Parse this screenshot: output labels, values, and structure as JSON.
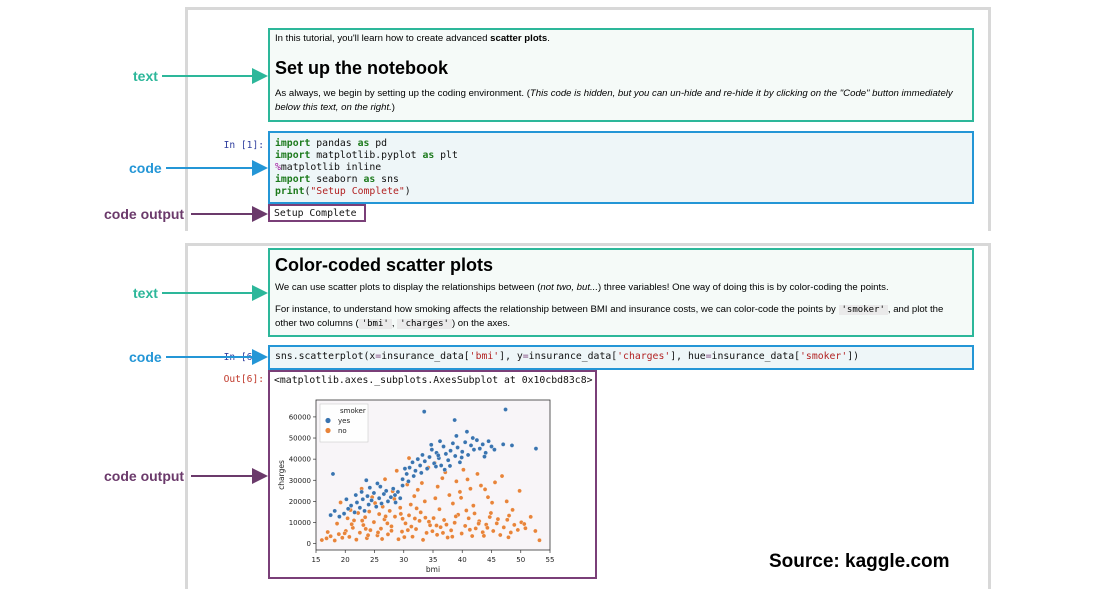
{
  "annotations": {
    "text": "text",
    "code": "code",
    "code_output": "code output"
  },
  "cell1": {
    "intro_prefix": "In this tutorial, you'll learn how to create advanced ",
    "intro_bold": "scatter plots",
    "intro_suffix": ".",
    "heading": "Set up the notebook",
    "para_prefix": "As always, we begin by setting up the coding environment. (",
    "para_italic": "This code is hidden, but you can un-hide and re-hide it by clicking on the \"Code\" button immediately below this text, on the right.",
    "para_suffix": ")"
  },
  "cell2": {
    "prompt": "In [1]:",
    "lines": [
      {
        "kw": "import",
        "rest": " pandas ",
        "kw2": "as",
        "rest2": " pd"
      },
      {
        "kw": "import",
        "rest": " matplotlib.pyplot ",
        "kw2": "as",
        "rest2": " plt"
      },
      {
        "mag": "%",
        "rest": "matplotlib inline"
      },
      {
        "kw": "import",
        "rest": " seaborn ",
        "kw2": "as",
        "rest2": " sns"
      },
      {
        "kw": "print",
        "open": "(",
        "str": "\"Setup Complete\"",
        "close": ")"
      }
    ]
  },
  "cell3": {
    "output": "Setup Complete"
  },
  "cell4": {
    "heading": "Color-coded scatter plots",
    "p1_prefix": "We can use scatter plots to display the relationships between (",
    "p1_italic": "not two, but...",
    "p1_suffix": ") three variables! One way of doing this is by color-coding the points.",
    "p2_a": "For instance, to understand how smoking affects the relationship between BMI and insurance costs, we can color-code the points by ",
    "p2_code1": "'smoker'",
    "p2_b": ", and plot the other two columns (",
    "p2_code2": "'bmi'",
    "p2_c": ", ",
    "p2_code3": "'charges'",
    "p2_d": ") on the axes."
  },
  "cell5": {
    "prompt": "In [6]:",
    "code_a": "sns.scatterplot(x",
    "code_eq1": "=",
    "code_b": "insurance_data[",
    "str1": "'bmi'",
    "code_c": "], y",
    "code_eq2": "=",
    "code_d": "insurance_data[",
    "str2": "'charges'",
    "code_e": "], hue",
    "code_eq3": "=",
    "code_f": "insurance_data[",
    "str3": "'smoker'",
    "code_g": "])"
  },
  "cell6": {
    "prompt": "Out[6]:",
    "repr": "<matplotlib.axes._subplots.AxesSubplot at 0x10cbd83c8>"
  },
  "source": "Source: kaggle.com",
  "colors": {
    "text_border": "#2db79a",
    "code_border": "#2496d6",
    "output_border": "#7a3f78",
    "yes": "#3a74b0",
    "no": "#e8843a"
  },
  "chart_data": {
    "type": "scatter",
    "xlabel": "bmi",
    "ylabel": "charges",
    "xlim": [
      15,
      55
    ],
    "ylim": [
      -3000,
      68000
    ],
    "xticks": [
      15,
      20,
      25,
      30,
      35,
      40,
      45,
      50,
      55
    ],
    "yticks": [
      0,
      10000,
      20000,
      30000,
      40000,
      50000,
      60000
    ],
    "legend_title": "smoker",
    "legend_position": "top-left",
    "series": [
      {
        "name": "yes",
        "color": "#3a74b0",
        "points": [
          [
            17.5,
            13500
          ],
          [
            18.2,
            15500
          ],
          [
            19,
            12800
          ],
          [
            19.8,
            14200
          ],
          [
            20.5,
            16500
          ],
          [
            21,
            18000
          ],
          [
            21.6,
            14800
          ],
          [
            22,
            19500
          ],
          [
            22.5,
            17000
          ],
          [
            23,
            21000
          ],
          [
            23.3,
            15500
          ],
          [
            23.8,
            22500
          ],
          [
            24,
            18500
          ],
          [
            24.5,
            20500
          ],
          [
            24.9,
            24000
          ],
          [
            25.3,
            17500
          ],
          [
            25.8,
            21500
          ],
          [
            26.2,
            19000
          ],
          [
            26.6,
            23500
          ],
          [
            27,
            25000
          ],
          [
            27.3,
            20000
          ],
          [
            27.8,
            22000
          ],
          [
            28.2,
            26000
          ],
          [
            28.6,
            19500
          ],
          [
            29,
            24500
          ],
          [
            29.4,
            21500
          ],
          [
            29.8,
            27500
          ],
          [
            28.5,
            23000
          ],
          [
            26,
            27000
          ],
          [
            24.2,
            26500
          ],
          [
            22.8,
            24500
          ],
          [
            25.5,
            28500
          ],
          [
            23.6,
            30000
          ],
          [
            21.8,
            23000
          ],
          [
            20.2,
            21000
          ],
          [
            30.5,
            33000
          ],
          [
            31,
            36000
          ],
          [
            31.5,
            38500
          ],
          [
            32,
            34500
          ],
          [
            32.4,
            40000
          ],
          [
            32.8,
            37000
          ],
          [
            33.2,
            42000
          ],
          [
            33.6,
            39000
          ],
          [
            34,
            35500
          ],
          [
            34.4,
            41000
          ],
          [
            34.8,
            44500
          ],
          [
            35.2,
            38000
          ],
          [
            35.6,
            43000
          ],
          [
            36,
            40500
          ],
          [
            36.4,
            37000
          ],
          [
            36.8,
            46000
          ],
          [
            37.2,
            42500
          ],
          [
            37.6,
            39500
          ],
          [
            38,
            44000
          ],
          [
            38.4,
            47500
          ],
          [
            38.8,
            41500
          ],
          [
            39.2,
            45500
          ],
          [
            39.6,
            38500
          ],
          [
            40,
            43500
          ],
          [
            40.5,
            48000
          ],
          [
            41,
            42000
          ],
          [
            41.5,
            46500
          ],
          [
            42,
            44500
          ],
          [
            42.5,
            49000
          ],
          [
            43,
            45000
          ],
          [
            43.5,
            47000
          ],
          [
            44,
            43000
          ],
          [
            44.5,
            48500
          ],
          [
            45,
            46000
          ],
          [
            45.5,
            44500
          ],
          [
            47.4,
            63500
          ],
          [
            52.6,
            45000
          ],
          [
            33.5,
            62500
          ],
          [
            38.7,
            58500
          ],
          [
            40.8,
            53000
          ],
          [
            29.8,
            30500
          ],
          [
            30.8,
            29500
          ],
          [
            31.7,
            32000
          ],
          [
            35.5,
            36500
          ],
          [
            37,
            35000
          ],
          [
            33,
            33500
          ],
          [
            36.2,
            48500
          ],
          [
            39,
            51000
          ],
          [
            41.8,
            50000
          ],
          [
            47,
            47000
          ],
          [
            48.5,
            46500
          ],
          [
            30.2,
            35500
          ],
          [
            34.7,
            46800
          ],
          [
            35.9,
            41800
          ],
          [
            37.9,
            36800
          ],
          [
            39.9,
            40800
          ],
          [
            43.8,
            41200
          ],
          [
            17.9,
            33000
          ]
        ]
      },
      {
        "name": "no",
        "color": "#e8843a",
        "points": [
          [
            16,
            1700
          ],
          [
            16.8,
            2500
          ],
          [
            17.5,
            3500
          ],
          [
            18.2,
            1500
          ],
          [
            18.9,
            4500
          ],
          [
            19.5,
            2800
          ],
          [
            20.1,
            6000
          ],
          [
            20.7,
            3200
          ],
          [
            21.3,
            7500
          ],
          [
            21.9,
            1900
          ],
          [
            22.5,
            5200
          ],
          [
            23.1,
            8800
          ],
          [
            23.7,
            2600
          ],
          [
            24.3,
            6400
          ],
          [
            24.9,
            10200
          ],
          [
            25.5,
            3900
          ],
          [
            26.1,
            7100
          ],
          [
            26.7,
            11500
          ],
          [
            27.3,
            4400
          ],
          [
            27.9,
            8200
          ],
          [
            28.5,
            12800
          ],
          [
            29.1,
            2100
          ],
          [
            29.7,
            5700
          ],
          [
            30.3,
            9600
          ],
          [
            30.9,
            13400
          ],
          [
            31.5,
            3300
          ],
          [
            32.1,
            6900
          ],
          [
            32.7,
            10800
          ],
          [
            33.3,
            1800
          ],
          [
            33.9,
            5100
          ],
          [
            34.5,
            8700
          ],
          [
            35.1,
            12100
          ],
          [
            35.7,
            4200
          ],
          [
            36.3,
            7800
          ],
          [
            36.9,
            11200
          ],
          [
            37.5,
            2900
          ],
          [
            38.1,
            6300
          ],
          [
            38.7,
            9900
          ],
          [
            39.3,
            13700
          ],
          [
            39.9,
            4800
          ],
          [
            40.5,
            8400
          ],
          [
            41.1,
            12000
          ],
          [
            41.7,
            3600
          ],
          [
            42.3,
            7200
          ],
          [
            42.9,
            10600
          ],
          [
            43.5,
            5400
          ],
          [
            44.1,
            9000
          ],
          [
            44.7,
            12600
          ],
          [
            45.3,
            6000
          ],
          [
            45.9,
            9600
          ],
          [
            46.5,
            4100
          ],
          [
            47.1,
            7700
          ],
          [
            47.7,
            11300
          ],
          [
            48.3,
            5300
          ],
          [
            48.9,
            8900
          ],
          [
            49.5,
            6500
          ],
          [
            50.1,
            10100
          ],
          [
            50.8,
            7300
          ],
          [
            52.5,
            6000
          ],
          [
            53.2,
            1600
          ],
          [
            21.5,
            11000
          ],
          [
            23.4,
            12500
          ],
          [
            25.8,
            14000
          ],
          [
            27.6,
            15500
          ],
          [
            29.4,
            17000
          ],
          [
            31.2,
            18500
          ],
          [
            33.6,
            20000
          ],
          [
            35.4,
            21500
          ],
          [
            37.8,
            23000
          ],
          [
            39.6,
            24500
          ],
          [
            41.4,
            26000
          ],
          [
            43.2,
            27500
          ],
          [
            45.6,
            29000
          ],
          [
            19.2,
            19500
          ],
          [
            24.6,
            22000
          ],
          [
            30.6,
            28000
          ],
          [
            36.6,
            31000
          ],
          [
            42.6,
            33000
          ],
          [
            28.8,
            34500
          ],
          [
            34.2,
            36000
          ],
          [
            40.2,
            35000
          ],
          [
            46.8,
            32000
          ],
          [
            49.8,
            25000
          ],
          [
            18.6,
            9500
          ],
          [
            20.4,
            12000
          ],
          [
            22.2,
            14500
          ],
          [
            26.4,
            17500
          ],
          [
            32.4,
            25500
          ],
          [
            38.4,
            19000
          ],
          [
            44.4,
            22000
          ],
          [
            48.6,
            16000
          ],
          [
            26.8,
            30500
          ],
          [
            22.8,
            26000
          ],
          [
            17,
            5500
          ],
          [
            31.8,
            22500
          ],
          [
            35.8,
            27000
          ],
          [
            39,
            29500
          ],
          [
            41.9,
            18000
          ],
          [
            44.9,
            14500
          ],
          [
            47.6,
            20000
          ],
          [
            27.2,
            9600
          ],
          [
            29.8,
            11800
          ],
          [
            32.9,
            14800
          ],
          [
            36.1,
            16300
          ],
          [
            38.9,
            12900
          ],
          [
            34.9,
            5900
          ],
          [
            30.1,
            3100
          ],
          [
            26.3,
            2200
          ],
          [
            23.9,
            4000
          ],
          [
            21.1,
            9200
          ],
          [
            33.1,
            28700
          ],
          [
            37.1,
            33800
          ],
          [
            43.9,
            25700
          ],
          [
            25.1,
            19200
          ],
          [
            28.1,
            24800
          ],
          [
            40.9,
            30400
          ],
          [
            35.3,
            38200
          ],
          [
            30.9,
            40500
          ],
          [
            28.4,
            21200
          ],
          [
            32.2,
            16700
          ],
          [
            39.8,
            21700
          ],
          [
            42.1,
            14300
          ],
          [
            45.1,
            19400
          ],
          [
            24.1,
            15200
          ],
          [
            20.9,
            15900
          ],
          [
            27.9,
            6100
          ],
          [
            31.3,
            8100
          ],
          [
            34.3,
            10400
          ],
          [
            36.7,
            5100
          ],
          [
            41.3,
            6600
          ],
          [
            43.7,
            3700
          ],
          [
            47.9,
            3000
          ],
          [
            50.6,
            9300
          ],
          [
            51.7,
            12700
          ],
          [
            38.3,
            3300
          ],
          [
            29.5,
            14100
          ],
          [
            33.7,
            12300
          ],
          [
            37.3,
            9000
          ],
          [
            40.7,
            15700
          ],
          [
            46.1,
            11600
          ],
          [
            23.5,
            7000
          ],
          [
            19.9,
            4900
          ],
          [
            48,
            13300
          ],
          [
            25.6,
            5300
          ],
          [
            30.7,
            6400
          ],
          [
            35.6,
            8600
          ],
          [
            42.8,
            9500
          ],
          [
            44.3,
            7500
          ],
          [
            26.9,
            12900
          ],
          [
            22.9,
            10900
          ],
          [
            31.9,
            11900
          ]
        ]
      }
    ]
  }
}
